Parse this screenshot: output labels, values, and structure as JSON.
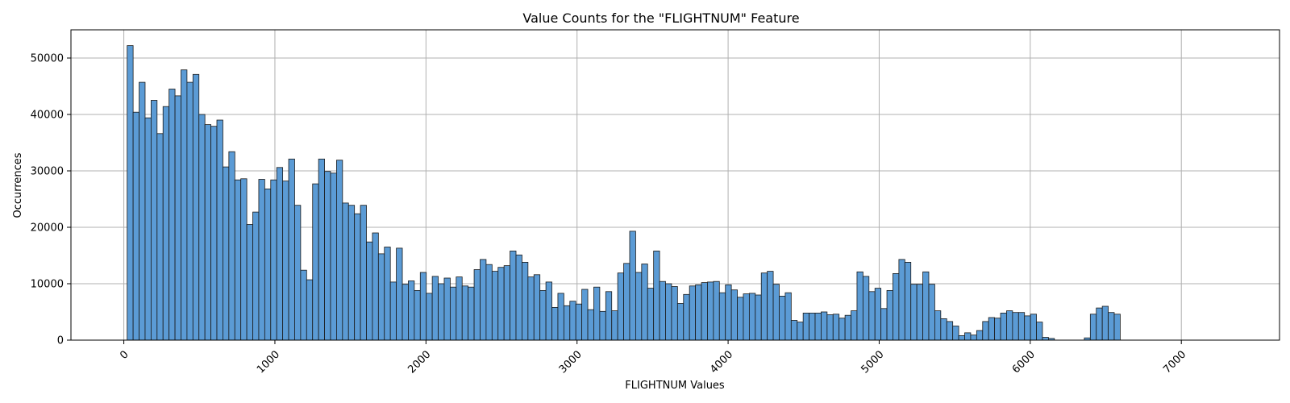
{
  "chart_data": {
    "type": "bar",
    "title": "Value Counts for the \"FLIGHTNUM\" Feature",
    "xlabel": "FLIGHTNUM Values",
    "ylabel": "Occurrences",
    "xlim": [
      -350,
      7650
    ],
    "ylim": [
      0,
      55000
    ],
    "xticks": [
      0,
      1000,
      2000,
      3000,
      4000,
      5000,
      6000,
      7000
    ],
    "yticks": [
      0,
      10000,
      20000,
      30000,
      40000,
      50000
    ],
    "grid": true,
    "bar_color": "#5b9bd5",
    "bin_start": 22,
    "bin_width": 39.6,
    "values": [
      52200,
      40400,
      45700,
      39400,
      42500,
      36600,
      41400,
      44500,
      43300,
      47900,
      45700,
      47100,
      40000,
      38200,
      37900,
      39000,
      30700,
      33400,
      28400,
      28600,
      20500,
      22700,
      28500,
      26800,
      28400,
      30600,
      28200,
      32100,
      23900,
      12400,
      10700,
      27700,
      32100,
      29900,
      29600,
      31900,
      24300,
      23900,
      22400,
      23900,
      17400,
      19000,
      15300,
      16500,
      10300,
      16300,
      9900,
      10500,
      8800,
      12000,
      8300,
      11300,
      10000,
      11000,
      9400,
      11200,
      9600,
      9400,
      12500,
      14300,
      13400,
      12200,
      12900,
      13200,
      15800,
      15100,
      13800,
      11200,
      11600,
      8800,
      10300,
      5800,
      8300,
      6100,
      6900,
      6400,
      9000,
      5400,
      9400,
      5100,
      8600,
      5200,
      11900,
      13600,
      19300,
      12000,
      13500,
      9200,
      15800,
      10400,
      10000,
      9500,
      6500,
      8100,
      9600,
      9800,
      10200,
      10300,
      10400,
      8400,
      9800,
      8900,
      7600,
      8200,
      8300,
      8000,
      11900,
      12200,
      9900,
      7800,
      8400,
      3500,
      3200,
      4800,
      4800,
      4800,
      5000,
      4500,
      4600,
      3900,
      4400,
      5200,
      12100,
      11300,
      8600,
      9200,
      5600,
      8800,
      11800,
      14300,
      13800,
      9900,
      9900,
      12100,
      9900,
      5200,
      3800,
      3300,
      2500,
      800,
      1300,
      900,
      1700,
      3300,
      4000,
      3900,
      4800,
      5200,
      4900,
      4900,
      4300,
      4600,
      3200,
      500,
      300,
      0,
      0,
      0,
      0,
      0,
      400,
      4600,
      5700,
      6000,
      4900,
      4600
    ]
  }
}
